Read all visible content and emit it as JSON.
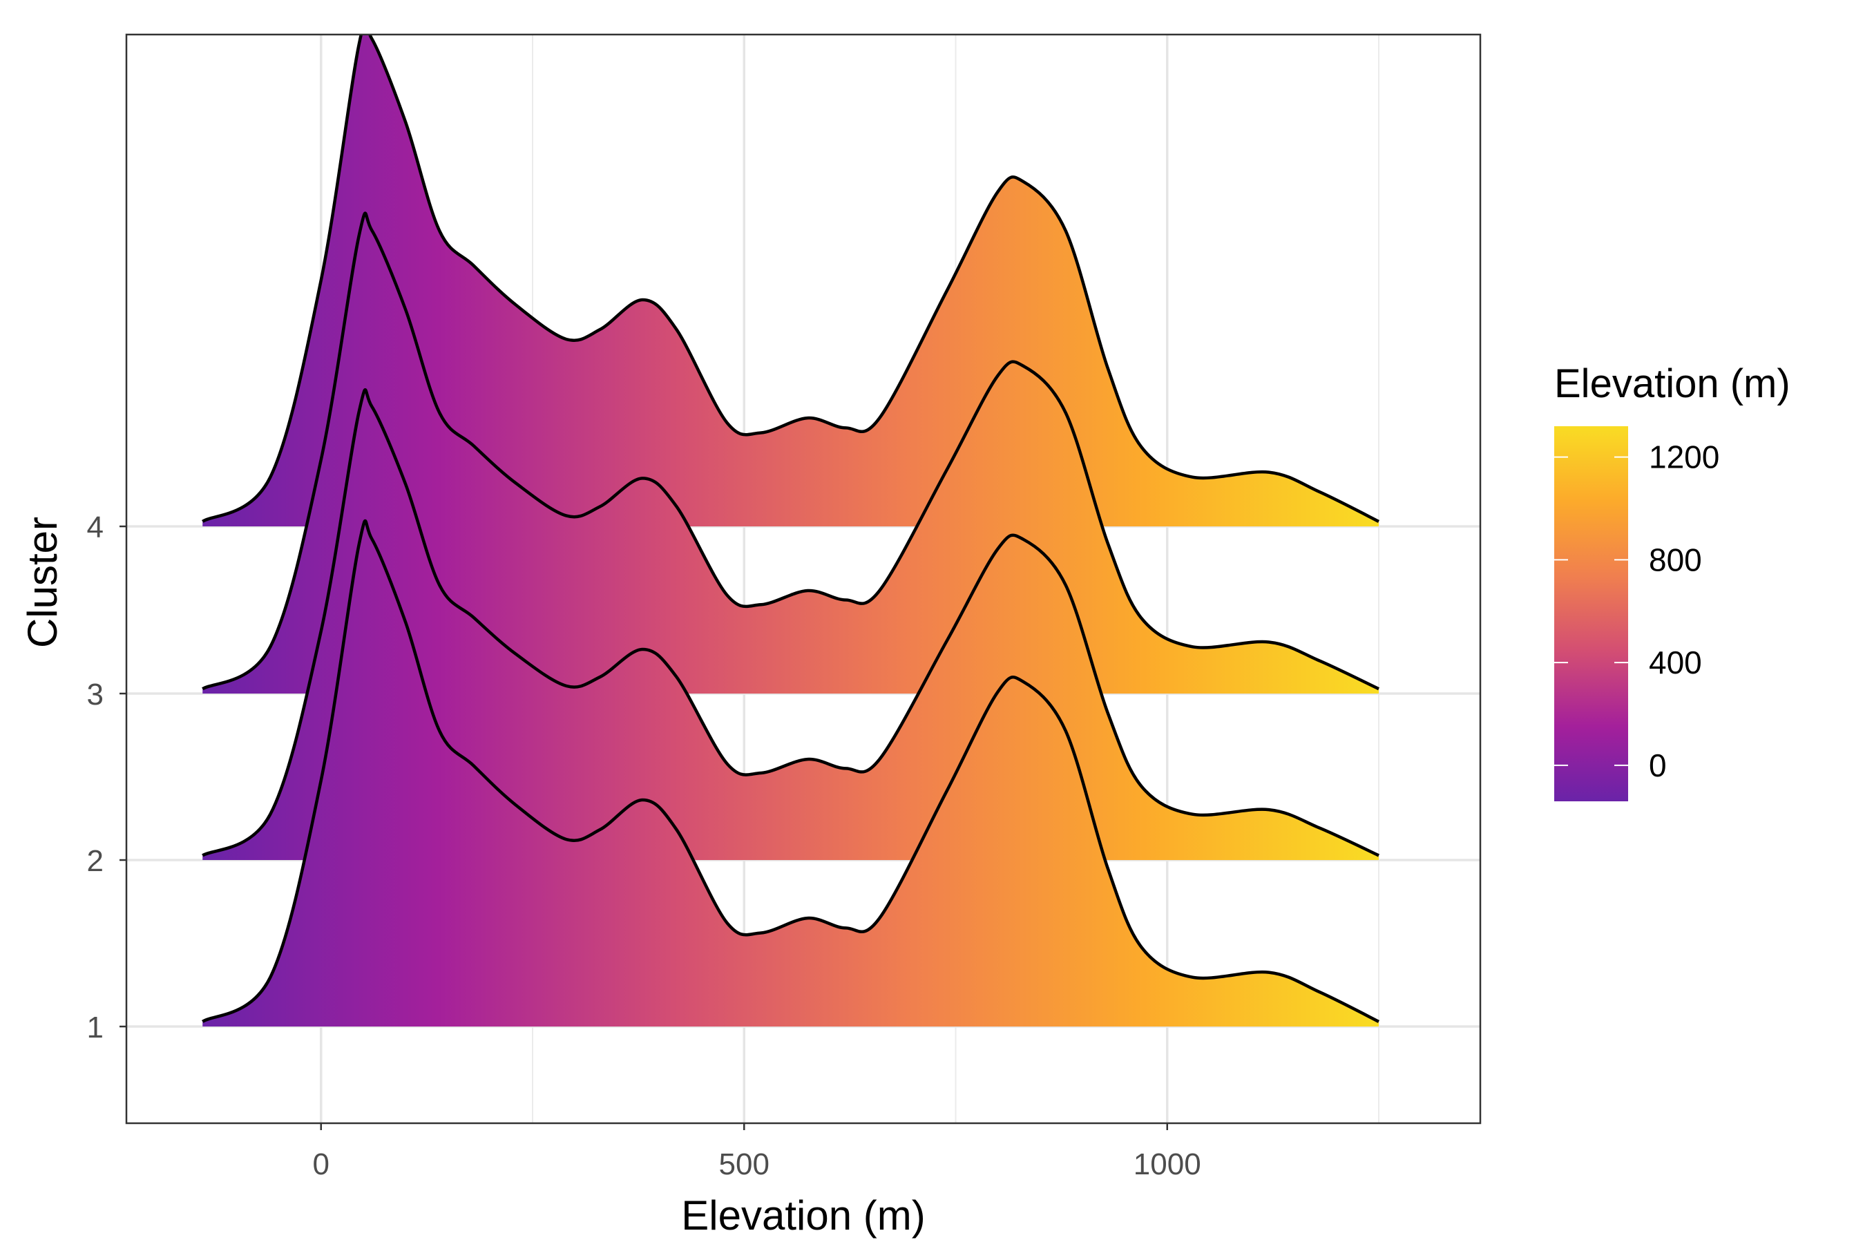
{
  "chart_data": {
    "type": "ridgeline",
    "xlabel": "Elevation (m)",
    "ylabel": "Cluster",
    "xlim": [
      -230,
      1370
    ],
    "x_ticks": [
      0,
      500,
      1000
    ],
    "x_tick_labels": [
      "0",
      "500",
      "1000"
    ],
    "x_minor_gridlines": [
      250,
      750,
      1250
    ],
    "categories": [
      "1",
      "2",
      "3",
      "4"
    ],
    "density_x_range": [
      -140,
      1250
    ],
    "fill_gradient": {
      "variable": "Elevation (m)",
      "colors": [
        "#6a23a8",
        "#a4209b",
        "#d34e73",
        "#f07f4f",
        "#fcaa2b",
        "#f9dc24"
      ],
      "range": [
        -140,
        1250
      ]
    },
    "series": [
      {
        "name": "1",
        "peak_height": 1.0,
        "knots": [
          [
            -140,
            0.01
          ],
          [
            -60,
            0.1
          ],
          [
            0,
            0.5
          ],
          [
            45,
            0.98
          ],
          [
            60,
            0.99
          ],
          [
            100,
            0.82
          ],
          [
            140,
            0.6
          ],
          [
            180,
            0.53
          ],
          [
            230,
            0.45
          ],
          [
            290,
            0.38
          ],
          [
            330,
            0.4
          ],
          [
            380,
            0.46
          ],
          [
            420,
            0.4
          ],
          [
            480,
            0.21
          ],
          [
            520,
            0.19
          ],
          [
            575,
            0.22
          ],
          [
            620,
            0.2
          ],
          [
            660,
            0.22
          ],
          [
            740,
            0.48
          ],
          [
            800,
            0.68
          ],
          [
            830,
            0.7
          ],
          [
            880,
            0.6
          ],
          [
            930,
            0.32
          ],
          [
            970,
            0.16
          ],
          [
            1030,
            0.1
          ],
          [
            1120,
            0.11
          ],
          [
            1180,
            0.07
          ],
          [
            1250,
            0.01
          ]
        ]
      },
      {
        "name": "2",
        "peak_height": 0.93,
        "knots": [
          [
            -140,
            0.01
          ],
          [
            -60,
            0.1
          ],
          [
            0,
            0.5
          ],
          [
            45,
            0.98
          ],
          [
            60,
            0.99
          ],
          [
            100,
            0.82
          ],
          [
            140,
            0.6
          ],
          [
            180,
            0.53
          ],
          [
            230,
            0.45
          ],
          [
            290,
            0.38
          ],
          [
            330,
            0.4
          ],
          [
            380,
            0.46
          ],
          [
            420,
            0.4
          ],
          [
            480,
            0.21
          ],
          [
            520,
            0.19
          ],
          [
            575,
            0.22
          ],
          [
            620,
            0.2
          ],
          [
            660,
            0.22
          ],
          [
            740,
            0.48
          ],
          [
            800,
            0.68
          ],
          [
            830,
            0.7
          ],
          [
            880,
            0.6
          ],
          [
            930,
            0.32
          ],
          [
            970,
            0.16
          ],
          [
            1030,
            0.1
          ],
          [
            1120,
            0.11
          ],
          [
            1180,
            0.07
          ],
          [
            1250,
            0.01
          ]
        ]
      },
      {
        "name": "3",
        "peak_height": 0.95,
        "knots": [
          [
            -140,
            0.01
          ],
          [
            -60,
            0.1
          ],
          [
            0,
            0.5
          ],
          [
            45,
            0.98
          ],
          [
            60,
            0.99
          ],
          [
            100,
            0.82
          ],
          [
            140,
            0.6
          ],
          [
            180,
            0.53
          ],
          [
            230,
            0.45
          ],
          [
            290,
            0.38
          ],
          [
            330,
            0.4
          ],
          [
            380,
            0.46
          ],
          [
            420,
            0.4
          ],
          [
            480,
            0.21
          ],
          [
            520,
            0.19
          ],
          [
            575,
            0.22
          ],
          [
            620,
            0.2
          ],
          [
            660,
            0.22
          ],
          [
            740,
            0.48
          ],
          [
            800,
            0.68
          ],
          [
            830,
            0.7
          ],
          [
            880,
            0.6
          ],
          [
            930,
            0.32
          ],
          [
            970,
            0.16
          ],
          [
            1030,
            0.1
          ],
          [
            1120,
            0.11
          ],
          [
            1180,
            0.07
          ],
          [
            1250,
            0.01
          ]
        ]
      },
      {
        "name": "4",
        "peak_height": 1.0,
        "knots": [
          [
            -140,
            0.01
          ],
          [
            -60,
            0.1
          ],
          [
            0,
            0.5
          ],
          [
            45,
            0.98
          ],
          [
            60,
            0.99
          ],
          [
            100,
            0.82
          ],
          [
            140,
            0.6
          ],
          [
            180,
            0.53
          ],
          [
            230,
            0.45
          ],
          [
            290,
            0.38
          ],
          [
            330,
            0.4
          ],
          [
            380,
            0.46
          ],
          [
            420,
            0.4
          ],
          [
            480,
            0.21
          ],
          [
            520,
            0.19
          ],
          [
            575,
            0.22
          ],
          [
            620,
            0.2
          ],
          [
            660,
            0.22
          ],
          [
            740,
            0.48
          ],
          [
            800,
            0.68
          ],
          [
            830,
            0.7
          ],
          [
            880,
            0.6
          ],
          [
            930,
            0.32
          ],
          [
            970,
            0.16
          ],
          [
            1030,
            0.1
          ],
          [
            1120,
            0.11
          ],
          [
            1180,
            0.07
          ],
          [
            1250,
            0.01
          ]
        ]
      }
    ],
    "legend": {
      "title": "Elevation (m)",
      "position": "right",
      "tick_values": [
        0,
        400,
        800,
        1200
      ],
      "tick_labels": [
        "0",
        "400",
        "800",
        "1200"
      ],
      "range": [
        -140,
        1320
      ]
    }
  }
}
